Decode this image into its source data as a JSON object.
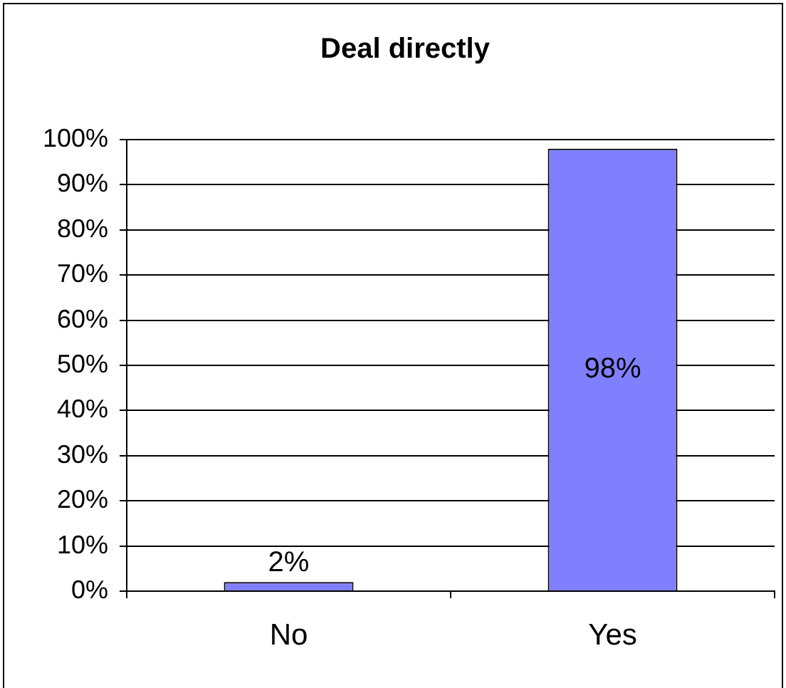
{
  "chart_data": {
    "type": "bar",
    "title": "Deal directly",
    "categories": [
      "No",
      "Yes"
    ],
    "values": [
      2,
      98
    ],
    "color": "#8080ff",
    "value_labels": [
      "2%",
      "98%"
    ],
    "ylim": [
      0,
      100
    ],
    "yticks": [
      {
        "value": 0,
        "label": "0%"
      },
      {
        "value": 10,
        "label": "10%"
      },
      {
        "value": 20,
        "label": "20%"
      },
      {
        "value": 30,
        "label": "30%"
      },
      {
        "value": 40,
        "label": "40%"
      },
      {
        "value": 50,
        "label": "50%"
      },
      {
        "value": 60,
        "label": "60%"
      },
      {
        "value": 70,
        "label": "70%"
      },
      {
        "value": 80,
        "label": "80%"
      },
      {
        "value": 90,
        "label": "90%"
      },
      {
        "value": 100,
        "label": "100%"
      }
    ],
    "grid": "y"
  }
}
